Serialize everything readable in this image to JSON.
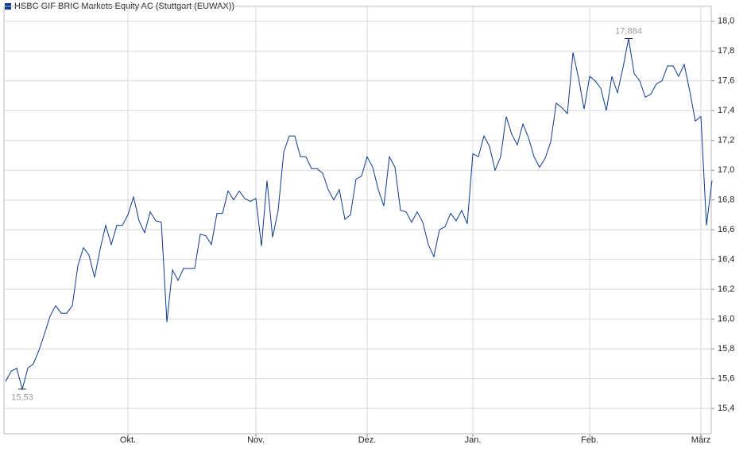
{
  "chart_data": {
    "type": "line",
    "categories": [
      null,
      null,
      null,
      null,
      null,
      null,
      null,
      null,
      null,
      null,
      null,
      null,
      null,
      null,
      null,
      null,
      null,
      null,
      null,
      null,
      null,
      null,
      "Okt.",
      null,
      null,
      null,
      null,
      null,
      null,
      null,
      null,
      null,
      null,
      null,
      null,
      null,
      null,
      null,
      null,
      null,
      null,
      null,
      null,
      null,
      null,
      "Nov.",
      null,
      null,
      null,
      null,
      null,
      null,
      null,
      null,
      null,
      null,
      null,
      null,
      null,
      null,
      null,
      null,
      null,
      null,
      null,
      "Dez.",
      null,
      null,
      null,
      null,
      null,
      null,
      null,
      null,
      null,
      null,
      null,
      null,
      null,
      null,
      null,
      null,
      null,
      null,
      "Jan.",
      null,
      null,
      null,
      null,
      null,
      null,
      null,
      null,
      null,
      null,
      null,
      null,
      null,
      null,
      null,
      null,
      null,
      null,
      null,
      null,
      "Feb.",
      null,
      null,
      null,
      null,
      null,
      null,
      null,
      null,
      null,
      null,
      null,
      null,
      null,
      null,
      null,
      null,
      null,
      null,
      null,
      "März",
      null,
      null
    ],
    "series": [
      {
        "name": "HSBC GIF BRIC Markets Equity AC (Stuttgart (EUWAX))",
        "color": "#0b3a8c",
        "values": [
          15.58,
          15.65,
          15.67,
          15.53,
          15.67,
          15.7,
          15.79,
          15.9,
          16.02,
          16.09,
          16.04,
          16.04,
          16.09,
          16.36,
          16.48,
          16.43,
          16.28,
          16.47,
          16.63,
          16.5,
          16.63,
          16.63,
          16.7,
          16.82,
          16.66,
          16.58,
          16.72,
          16.66,
          16.65,
          15.98,
          16.33,
          16.26,
          16.34,
          16.34,
          16.34,
          16.57,
          16.56,
          16.5,
          16.71,
          16.71,
          16.86,
          16.8,
          16.86,
          16.81,
          16.79,
          16.81,
          16.49,
          16.93,
          16.55,
          16.73,
          17.12,
          17.23,
          17.23,
          17.09,
          17.09,
          17.01,
          17.01,
          16.98,
          16.87,
          16.8,
          16.87,
          16.67,
          16.7,
          16.94,
          16.96,
          17.09,
          17.02,
          16.87,
          16.76,
          17.09,
          17.02,
          16.73,
          16.72,
          16.65,
          16.72,
          16.65,
          16.5,
          16.42,
          16.6,
          16.62,
          16.71,
          16.66,
          16.73,
          16.64,
          17.11,
          17.09,
          17.23,
          17.16,
          17.0,
          17.09,
          17.36,
          17.24,
          17.17,
          17.31,
          17.22,
          17.09,
          17.02,
          17.08,
          17.19,
          17.45,
          17.42,
          17.38,
          17.79,
          17.62,
          17.41,
          17.63,
          17.6,
          17.55,
          17.4,
          17.63,
          17.52,
          17.69,
          17.884,
          17.65,
          17.6,
          17.49,
          17.51,
          17.58,
          17.6,
          17.7,
          17.7,
          17.63,
          17.71,
          17.53,
          17.33,
          17.36,
          16.63,
          16.93
        ]
      }
    ],
    "annotations": [
      {
        "value": 15.53,
        "label": "15,53"
      },
      {
        "value": 17.884,
        "label": "17,884"
      }
    ],
    "ylim": [
      15.23,
      18.1
    ],
    "yticks": [
      {
        "value": 15.4,
        "label": "15,4"
      },
      {
        "value": 15.6,
        "label": "15,6"
      },
      {
        "value": 15.8,
        "label": "15,8"
      },
      {
        "value": 16.0,
        "label": "16,0"
      },
      {
        "value": 16.2,
        "label": "16,2"
      },
      {
        "value": 16.4,
        "label": "16,4"
      },
      {
        "value": 16.6,
        "label": "16,6"
      },
      {
        "value": 16.8,
        "label": "16,8"
      },
      {
        "value": 17.0,
        "label": "17,0"
      },
      {
        "value": 17.2,
        "label": "17,2"
      },
      {
        "value": 17.4,
        "label": "17,4"
      },
      {
        "value": 17.6,
        "label": "17,6"
      },
      {
        "value": 17.8,
        "label": "17,8"
      },
      {
        "value": 18.0,
        "label": "18,0"
      }
    ],
    "grid": true
  }
}
